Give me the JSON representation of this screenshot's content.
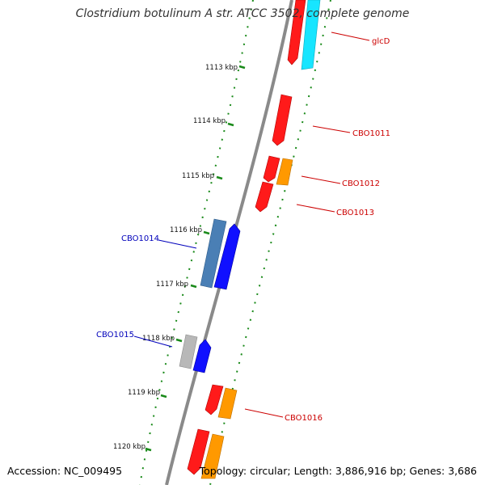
{
  "title": "Clostridium botulinum A str. ATCC 3502, complete genome",
  "accession": "Accession: NC_009495",
  "topology": "Topology: circular; Length: 3,886,916 bp; Genes: 3,686",
  "colors": {
    "backbone": "#8a8a8a",
    "tick": "#1a8a1a",
    "red": "#ff1a1a",
    "orange": "#ff9900",
    "cyan": "#17e5ff",
    "blue": "#1010ff",
    "steelblue": "#4a7fb5",
    "gray": "#b8b8b8",
    "label_red": "#cc0000",
    "label_blue": "#0000bb"
  },
  "ticks": [
    {
      "label": "1113 kbp"
    },
    {
      "label": "1114 kbp"
    },
    {
      "label": "1115 kbp"
    },
    {
      "label": "1116 kbp"
    },
    {
      "label": "1117 kbp"
    },
    {
      "label": "1118 kbp"
    },
    {
      "label": "1119 kbp"
    },
    {
      "label": "1120 kbp"
    }
  ],
  "gene_labels": [
    {
      "text": "glcD",
      "strand": "forward"
    },
    {
      "text": "CBO1011",
      "strand": "forward"
    },
    {
      "text": "CBO1012",
      "strand": "forward"
    },
    {
      "text": "CBO1013",
      "strand": "forward"
    },
    {
      "text": "CBO1014",
      "strand": "reverse"
    },
    {
      "text": "CBO1015",
      "strand": "reverse"
    },
    {
      "text": "CBO1016",
      "strand": "forward"
    }
  ]
}
